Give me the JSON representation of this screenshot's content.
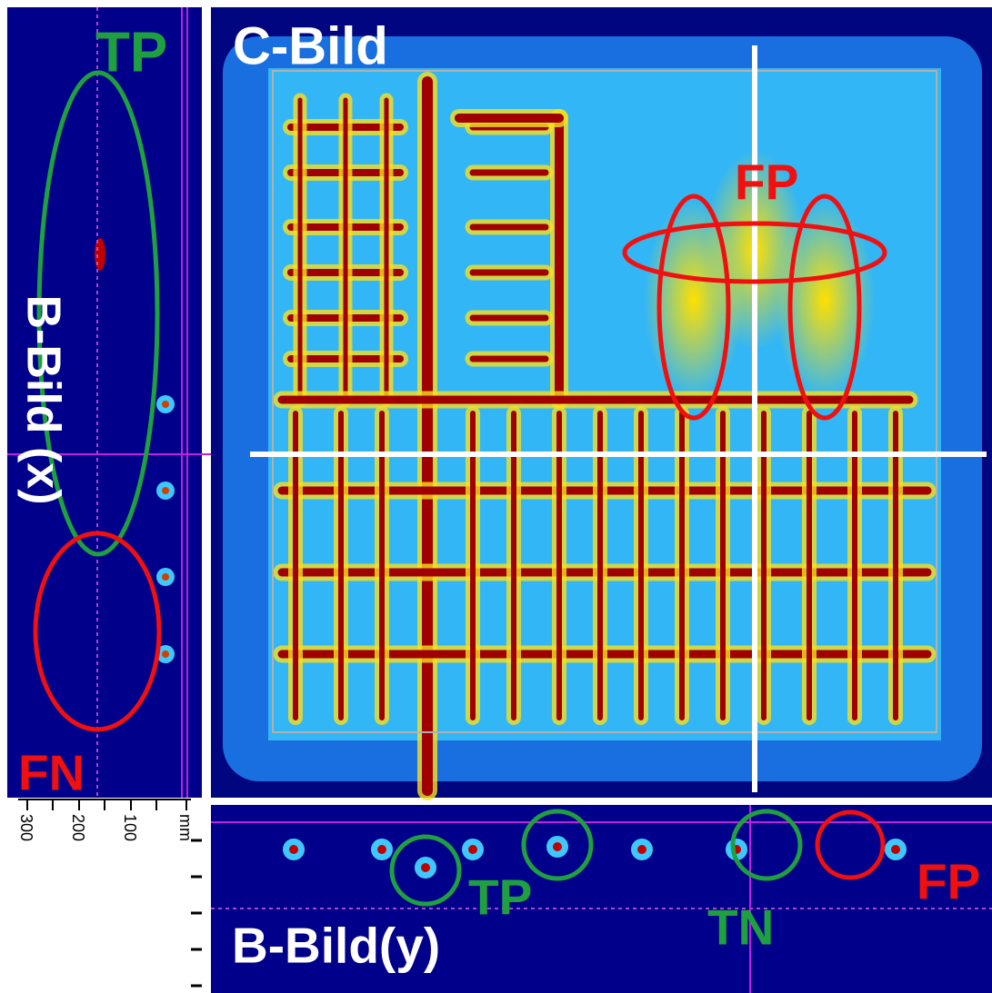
{
  "panels": {
    "c_bild": "C-Bild",
    "b_bild_x": "B-Bild (x)",
    "b_bild_y": "B-Bild(y)"
  },
  "annotations": {
    "left_tp": "TP",
    "left_fn": "FN",
    "top_fp": "FP",
    "bottom_tp": "TP",
    "bottom_tn": "TN",
    "bottom_fp": "FP"
  },
  "scale": {
    "labels": [
      "300",
      "200",
      "100"
    ],
    "unit": "mm"
  }
}
